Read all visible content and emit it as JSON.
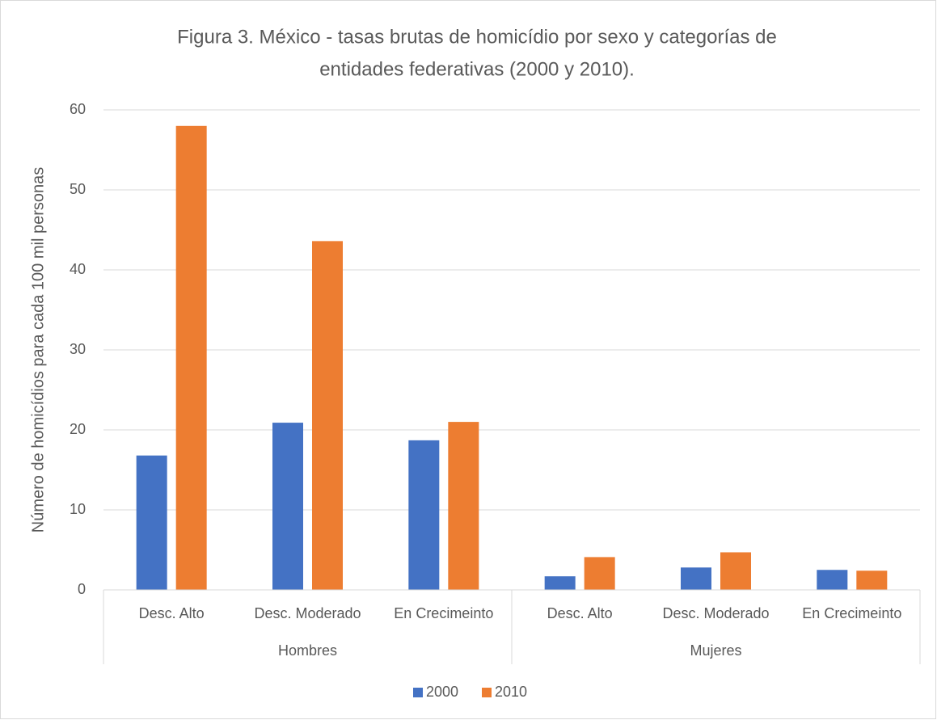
{
  "chart_data": {
    "type": "bar",
    "title": [
      "Figura 3. México - tasas brutas de homicídio por sexo y categorías de",
      "entidades federativas (2000 y 2010)."
    ],
    "y_label": "Número de homicídios para cada 100 mil personas",
    "groups": [
      {
        "label": "Hombres",
        "categories": [
          "Desc. Alto",
          "Desc. Moderado",
          "En Crecimeinto"
        ]
      },
      {
        "label": "Mujeres",
        "categories": [
          "Desc. Alto",
          "Desc. Moderado",
          "En Crecimeinto"
        ]
      }
    ],
    "series": [
      {
        "name": "2000",
        "color": "#4472c4",
        "values": [
          16.8,
          20.9,
          18.7,
          1.7,
          2.8,
          2.5
        ]
      },
      {
        "name": "2010",
        "color": "#ed7d31",
        "values": [
          58,
          43.6,
          21,
          4.1,
          4.7,
          2.4
        ]
      }
    ],
    "ylim": [
      0,
      60
    ],
    "yticks": [
      0,
      10,
      20,
      30,
      40,
      50,
      60
    ],
    "grid": true,
    "legend": "bottom"
  }
}
